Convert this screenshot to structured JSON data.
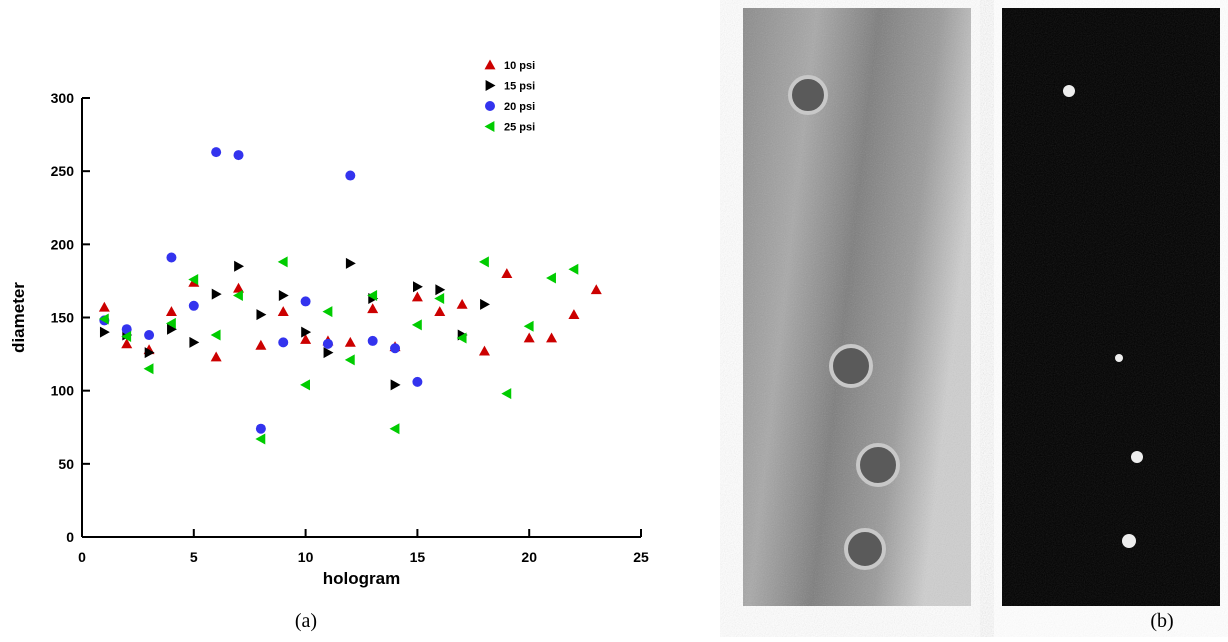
{
  "chart_data": {
    "type": "scatter",
    "xlabel": "hologram",
    "ylabel": "diameter",
    "xlim": [
      0,
      25
    ],
    "xticks": [
      0,
      5,
      10,
      15,
      20,
      25
    ],
    "ylim": [
      0,
      300
    ],
    "yticks": [
      0,
      50,
      100,
      150,
      200,
      250,
      300
    ],
    "legend": "upper right",
    "series": [
      {
        "name": "10 psi",
        "color": "#cc0000",
        "marker": "triangle-up",
        "x": [
          1,
          2,
          3,
          4,
          5,
          6,
          7,
          8,
          9,
          10,
          11,
          12,
          13,
          14,
          15,
          16,
          17,
          18,
          19,
          20,
          21,
          22,
          23
        ],
        "values": [
          157,
          132,
          128,
          154,
          174,
          123,
          170,
          131,
          154,
          135,
          134,
          133,
          156,
          130,
          164,
          154,
          159,
          127,
          180,
          136,
          136,
          152,
          169
        ]
      },
      {
        "name": "15 psi",
        "color": "#000000",
        "marker": "triangle-right",
        "x": [
          1,
          2,
          3,
          4,
          5,
          6,
          7,
          8,
          9,
          10,
          11,
          12,
          13,
          14,
          15,
          16,
          17,
          18
        ],
        "values": [
          140,
          138,
          126,
          142,
          133,
          166,
          185,
          152,
          165,
          140,
          126,
          187,
          163,
          104,
          171,
          169,
          138,
          159
        ]
      },
      {
        "name": "20 psi",
        "color": "#3333ee",
        "marker": "circle",
        "x": [
          1,
          2,
          3,
          4,
          5,
          6,
          7,
          8,
          9,
          10,
          11,
          12,
          13,
          14,
          15
        ],
        "values": [
          148,
          142,
          138,
          191,
          158,
          263,
          261,
          74,
          133,
          161,
          132,
          247,
          134,
          129,
          106
        ]
      },
      {
        "name": "25 psi",
        "color": "#00cc00",
        "marker": "triangle-left",
        "x": [
          1,
          2,
          3,
          4,
          5,
          6,
          7,
          8,
          9,
          10,
          11,
          12,
          13,
          14,
          15,
          16,
          17,
          18,
          19,
          20,
          21,
          22
        ],
        "values": [
          149,
          137,
          115,
          146,
          176,
          138,
          165,
          67,
          188,
          104,
          154,
          121,
          165,
          74,
          145,
          163,
          136,
          188,
          98,
          144,
          177,
          183
        ]
      }
    ]
  },
  "captions": [
    "(a)",
    "(b)"
  ]
}
